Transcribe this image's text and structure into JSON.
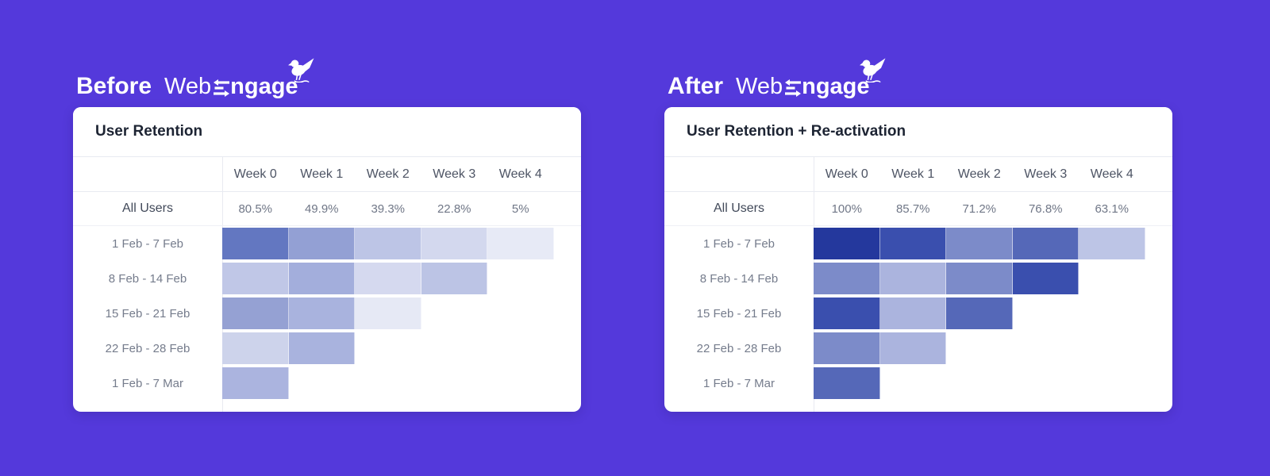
{
  "page": {
    "background_color": "#5439DB",
    "accent_dark_cell": "#24389D",
    "card_color": "#FFFFFF"
  },
  "brand": {
    "prefix_light": "Web",
    "suffix_bold": "ngage",
    "e_icon_name": "swap-arrows-e-icon",
    "bird_icon_name": "webengage-bird-icon"
  },
  "panels": [
    {
      "badge": "Before",
      "table": {
        "title": "User Retention",
        "week_columns": [
          "Week 0",
          "Week 1",
          "Week 2",
          "Week 3",
          "Week 4"
        ],
        "summary_row": {
          "label": "All Users",
          "values": [
            "80.5%",
            "49.9%",
            "39.3%",
            "22.8%",
            "5%"
          ]
        },
        "cohort_rows": [
          {
            "label": "1 Feb - 7 Feb",
            "cell_colors": [
              "#6377C1",
              "#93A0D4",
              "#BDC5E6",
              "#D3D8EE",
              "#E7EAF6"
            ]
          },
          {
            "label": "8 Feb - 14 Feb",
            "cell_colors": [
              "#C0C7E7",
              "#A3AEDC",
              "#D5D9EF",
              "#BCC4E5"
            ]
          },
          {
            "label": "15 Feb - 21 Feb",
            "cell_colors": [
              "#95A1D3",
              "#A9B3DE",
              "#E6E9F5"
            ]
          },
          {
            "label": "22 Feb - 28 Feb",
            "cell_colors": [
              "#CDD3EB",
              "#A9B3DE"
            ]
          },
          {
            "label": "1 Feb - 7 Mar",
            "cell_colors": [
              "#ABB4DF"
            ]
          }
        ]
      }
    },
    {
      "badge": "After",
      "table": {
        "title": "User Retention + Re-activation",
        "week_columns": [
          "Week 0",
          "Week 1",
          "Week 2",
          "Week 3",
          "Week 4"
        ],
        "summary_row": {
          "label": "All Users",
          "values": [
            "100%",
            "85.7%",
            "71.2%",
            "76.8%",
            "63.1%"
          ]
        },
        "cohort_rows": [
          {
            "label": "1 Feb - 7 Feb",
            "cell_colors": [
              "#24389D",
              "#3A4FAE",
              "#7C8BC9",
              "#5568B8",
              "#BDC5E6"
            ]
          },
          {
            "label": "8 Feb - 14 Feb",
            "cell_colors": [
              "#7C8BC9",
              "#ABB4DE",
              "#7C8BC9",
              "#3A4FAE"
            ]
          },
          {
            "label": "15 Feb - 21 Feb",
            "cell_colors": [
              "#3A4FAE",
              "#ABB4DE",
              "#5568B8"
            ]
          },
          {
            "label": "22 Feb - 28 Feb",
            "cell_colors": [
              "#7C8BC9",
              "#ABB4DE"
            ]
          },
          {
            "label": "1 Feb - 7 Mar",
            "cell_colors": [
              "#5568B8"
            ]
          }
        ]
      }
    }
  ],
  "chart_data": [
    {
      "type": "heatmap",
      "title": "User Retention",
      "context_label": "Before",
      "columns": [
        "Week 0",
        "Week 1",
        "Week 2",
        "Week 3",
        "Week 4"
      ],
      "all_users_values_pct": [
        80.5,
        49.9,
        39.3,
        22.8,
        5
      ],
      "rows": [
        "1 Feb - 7 Feb",
        "8 Feb - 14 Feb",
        "15 Feb - 21 Feb",
        "22 Feb - 28 Feb",
        "1 Feb - 7 Mar"
      ],
      "cells_note": "cohort cells show color intensity only, no numeric labels",
      "cell_colors": [
        [
          "#6377C1",
          "#93A0D4",
          "#BDC5E6",
          "#D3D8EE",
          "#E7EAF6"
        ],
        [
          "#C0C7E7",
          "#A3AEDC",
          "#D5D9EF",
          "#BCC4E5"
        ],
        [
          "#95A1D3",
          "#A9B3DE",
          "#E6E9F5"
        ],
        [
          "#CDD3EB",
          "#A9B3DE"
        ],
        [
          "#ABB4DF"
        ]
      ],
      "legend": "darker blue = higher retention"
    },
    {
      "type": "heatmap",
      "title": "User Retention + Re-activation",
      "context_label": "After",
      "columns": [
        "Week 0",
        "Week 1",
        "Week 2",
        "Week 3",
        "Week 4"
      ],
      "all_users_values_pct": [
        100,
        85.7,
        71.2,
        76.8,
        63.1
      ],
      "rows": [
        "1 Feb - 7 Feb",
        "8 Feb - 14 Feb",
        "15 Feb - 21 Feb",
        "22 Feb - 28 Feb",
        "1 Feb - 7 Mar"
      ],
      "cells_note": "cohort cells show color intensity only, no numeric labels",
      "cell_colors": [
        [
          "#24389D",
          "#3A4FAE",
          "#7C8BC9",
          "#5568B8",
          "#BDC5E6"
        ],
        [
          "#7C8BC9",
          "#ABB4DE",
          "#7C8BC9",
          "#3A4FAE"
        ],
        [
          "#3A4FAE",
          "#ABB4DE",
          "#5568B8"
        ],
        [
          "#7C8BC9",
          "#ABB4DE"
        ],
        [
          "#5568B8"
        ]
      ],
      "legend": "darker blue = higher retention"
    }
  ]
}
